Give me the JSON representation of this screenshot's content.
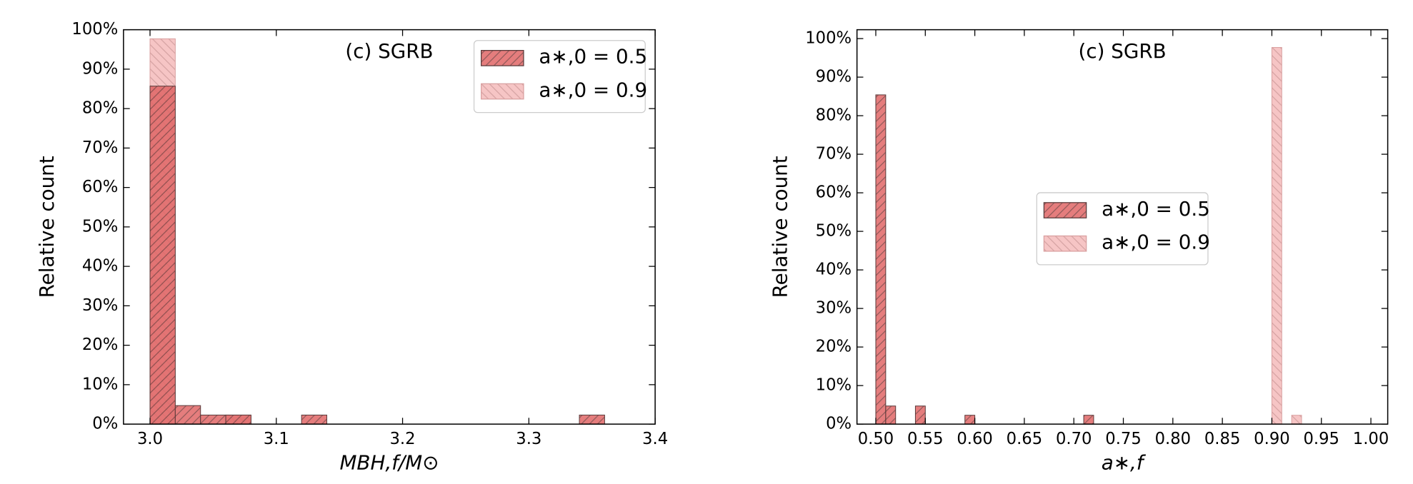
{
  "chart_data": [
    {
      "type": "histogram",
      "annotation": "(c) SGRB",
      "xlabel": "MBH,f/M⊙",
      "ylabel": "Relative count",
      "bins": [
        3.0,
        3.02,
        3.04,
        3.06,
        3.08,
        3.1,
        3.12,
        3.14,
        3.16,
        3.18,
        3.2,
        3.22,
        3.24,
        3.26,
        3.28,
        3.3,
        3.32,
        3.34,
        3.36,
        3.38,
        3.4
      ],
      "series": [
        {
          "name": "a∗,0 = 0.5",
          "color": "#e06666",
          "hatch": "///",
          "values": [
            85.7,
            4.7,
            2.3,
            2.3,
            0,
            0,
            2.3,
            0,
            0,
            0,
            0,
            0,
            0,
            0,
            0,
            0,
            0,
            2.3,
            0,
            0
          ]
        },
        {
          "name": "a∗,0 = 0.9",
          "color": "#f4b6b6",
          "hatch": "\\\\",
          "values": [
            97.7,
            0,
            0,
            2.3,
            0,
            0,
            0,
            0,
            0,
            0,
            0,
            0,
            0,
            0,
            0,
            0,
            0,
            0,
            0,
            0
          ]
        }
      ],
      "xlim": [
        2.979,
        3.4
      ],
      "ylim": [
        0,
        100
      ],
      "xticks": [
        {
          "value": 3,
          "label": "3.0"
        },
        3.1,
        3.2,
        3.3,
        3.4
      ],
      "yticks": [
        {
          "value": 0,
          "label": "0%"
        },
        {
          "value": 10,
          "label": "10%"
        },
        {
          "value": 20,
          "label": "20%"
        },
        {
          "value": 30,
          "label": "30%"
        },
        {
          "value": 40,
          "label": "40%"
        },
        {
          "value": 50,
          "label": "50%"
        },
        {
          "value": 60,
          "label": "60%"
        },
        {
          "value": 70,
          "label": "70%"
        },
        {
          "value": 80,
          "label": "80%"
        },
        {
          "value": 90,
          "label": "90%"
        },
        {
          "value": 100,
          "label": "100%"
        }
      ],
      "legend": "upper right"
    },
    {
      "type": "histogram",
      "annotation": "(c) SGRB",
      "xlabel": "a∗,f",
      "ylabel": "Relative count",
      "bins": [
        0.5,
        0.51,
        0.52,
        0.53,
        0.54,
        0.55,
        0.56,
        0.57,
        0.58,
        0.59,
        0.6,
        0.61,
        0.62,
        0.63,
        0.64,
        0.65,
        0.66,
        0.67,
        0.68,
        0.69,
        0.7,
        0.71,
        0.72,
        0.73,
        0.74,
        0.75,
        0.76,
        0.77,
        0.78,
        0.79,
        0.8,
        0.81,
        0.82,
        0.83,
        0.84,
        0.85,
        0.86,
        0.87,
        0.88,
        0.89,
        0.9,
        0.91,
        0.92,
        0.93,
        0.94,
        0.95,
        0.96,
        0.97,
        0.98,
        0.99,
        1.0
      ],
      "series": [
        {
          "name": "a∗,0 = 0.5",
          "color": "#e06666",
          "hatch": "///",
          "values": [
            85.4,
            4.7,
            0,
            0,
            4.7,
            0,
            0,
            0,
            0,
            2.3,
            0,
            0,
            0,
            0,
            0,
            0,
            0,
            0,
            0,
            0,
            0,
            2.3,
            0,
            0,
            0,
            0,
            0,
            0,
            0,
            0,
            0,
            0,
            0,
            0,
            0,
            0,
            0,
            0,
            0,
            0,
            0,
            0,
            0,
            0,
            0,
            0,
            0,
            0,
            0,
            0
          ]
        },
        {
          "name": "a∗,0 = 0.9",
          "color": "#f4b6b6",
          "hatch": "\\\\",
          "values": [
            0,
            0,
            0,
            0,
            0,
            0,
            0,
            0,
            0,
            0,
            0,
            0,
            0,
            0,
            0,
            0,
            0,
            0,
            0,
            0,
            0,
            0,
            0,
            0,
            0,
            0,
            0,
            0,
            0,
            0,
            0,
            0,
            0,
            0,
            0,
            0,
            0,
            0,
            0,
            0,
            97.7,
            0,
            2.3,
            0,
            0,
            0,
            0,
            0,
            0,
            0
          ]
        }
      ],
      "xlim": [
        0.481,
        1.017
      ],
      "ylim": [
        0,
        102.3
      ],
      "xticks": [
        {
          "value": 0.5,
          "label": "0.50"
        },
        0.55,
        {
          "value": 0.6,
          "label": "0.60"
        },
        0.65,
        {
          "value": 0.7,
          "label": "0.70"
        },
        0.75,
        {
          "value": 0.8,
          "label": "0.80"
        },
        0.85,
        {
          "value": 0.9,
          "label": "0.90"
        },
        0.95,
        {
          "value": 1,
          "label": "1.00"
        }
      ],
      "yticks": [
        {
          "value": 0,
          "label": "0%"
        },
        {
          "value": 10,
          "label": "10%"
        },
        {
          "value": 20,
          "label": "20%"
        },
        {
          "value": 30,
          "label": "30%"
        },
        {
          "value": 40,
          "label": "40%"
        },
        {
          "value": 50,
          "label": "50%"
        },
        {
          "value": 60,
          "label": "60%"
        },
        {
          "value": 70,
          "label": "70%"
        },
        {
          "value": 80,
          "label": "80%"
        },
        {
          "value": 90,
          "label": "90%"
        },
        {
          "value": 100,
          "label": "100%"
        }
      ],
      "legend": "center"
    }
  ]
}
